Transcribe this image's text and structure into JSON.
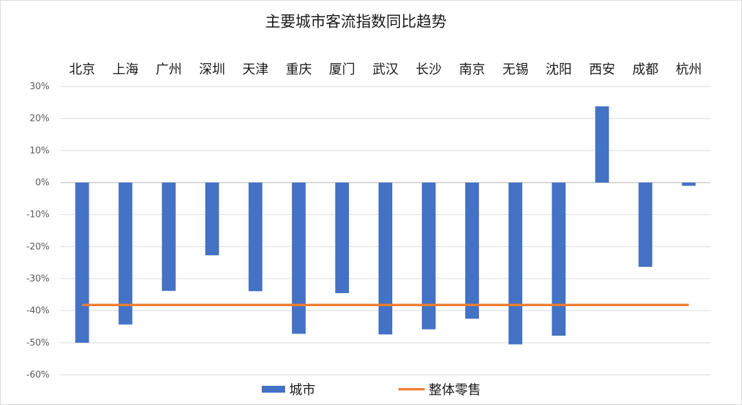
{
  "chart_data": {
    "type": "bar",
    "title": "主要城市客流指数同比趋势",
    "categories": [
      "北京",
      "上海",
      "广州",
      "深圳",
      "天津",
      "重庆",
      "厦门",
      "武汉",
      "长沙",
      "南京",
      "无锡",
      "沈阳",
      "西安",
      "成都",
      "杭州"
    ],
    "series": [
      {
        "name": "城市",
        "type": "bar",
        "color": "#4472c4",
        "values": [
          -0.5,
          -0.443,
          -0.338,
          -0.227,
          -0.339,
          -0.472,
          -0.345,
          -0.474,
          -0.458,
          -0.425,
          -0.505,
          -0.478,
          0.238,
          -0.263,
          -0.01
        ]
      },
      {
        "name": "整体零售",
        "type": "line",
        "color": "#ed7d31",
        "values": [
          -0.382,
          -0.382,
          -0.382,
          -0.382,
          -0.382,
          -0.382,
          -0.382,
          -0.382,
          -0.382,
          -0.382,
          -0.382,
          -0.382,
          -0.382,
          -0.382,
          -0.382
        ]
      }
    ],
    "ylim": [
      -0.6,
      0.3
    ],
    "yticks": [
      0.3,
      0.2,
      0.1,
      0,
      -0.1,
      -0.2,
      -0.3,
      -0.4,
      -0.5,
      -0.6
    ],
    "ytick_labels": [
      "30%",
      "20%",
      "10%",
      "0%",
      "-10%",
      "-20%",
      "-30%",
      "-40%",
      "-50%",
      "-60%"
    ],
    "category_labels_position": "top",
    "grid": true,
    "legend": "bottom"
  }
}
